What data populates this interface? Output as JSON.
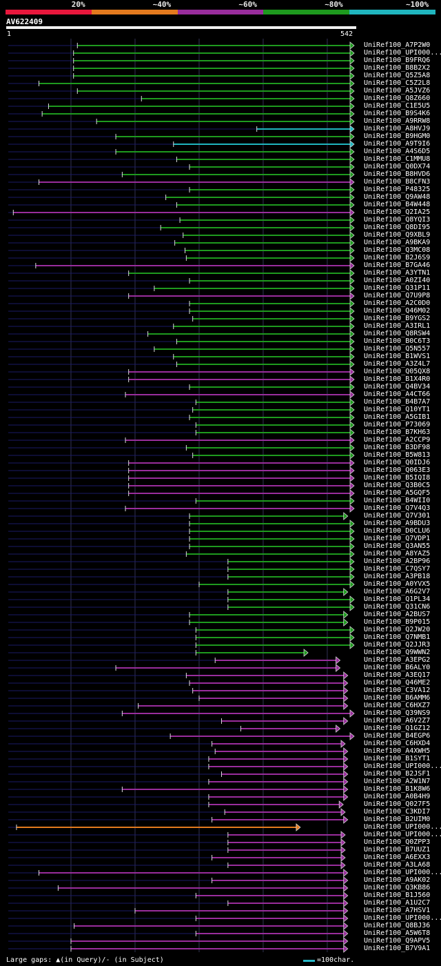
{
  "legend": [
    {
      "label": "20%",
      "color": "#e8173c"
    },
    {
      "label": "~40%",
      "color": "#e37a1e"
    },
    {
      "label": "~60%",
      "color": "#992d9c"
    },
    {
      "label": "~80%",
      "color": "#1e9a1e"
    },
    {
      "label": "~100%",
      "color": "#20b6bf"
    }
  ],
  "query": {
    "name": "AV622409",
    "start": "1",
    "end": "542",
    "length": 542
  },
  "hits": [
    {
      "id": "UniRef100_A7P2W0",
      "s": 110,
      "e": 542,
      "c": "g"
    },
    {
      "id": "UniRef100_UPI000...",
      "s": 104,
      "e": 542,
      "c": "g"
    },
    {
      "id": "UniRef100_B9FRQ6",
      "s": 104,
      "e": 542,
      "c": "g"
    },
    {
      "id": "UniRef100_B8B2X2",
      "s": 104,
      "e": 542,
      "c": "g"
    },
    {
      "id": "UniRef100_Q5Z5A8",
      "s": 104,
      "e": 542,
      "c": "g"
    },
    {
      "id": "UniRef100_C5Z2L8",
      "s": 50,
      "e": 542,
      "c": "g",
      "g": [
        [
          90,
          115
        ],
        [
          145,
          170
        ]
      ]
    },
    {
      "id": "UniRef100_A5JVZ6",
      "s": 110,
      "e": 542,
      "c": "g"
    },
    {
      "id": "UniRef100_Q8Z660",
      "s": 210,
      "e": 542,
      "c": "g"
    },
    {
      "id": "UniRef100_C1E5U5",
      "s": 65,
      "e": 542,
      "c": "g"
    },
    {
      "id": "UniRef100_B9S4K6",
      "s": 55,
      "e": 542,
      "c": "g"
    },
    {
      "id": "UniRef100_A9RRW8",
      "s": 140,
      "e": 542,
      "c": "g"
    },
    {
      "id": "UniRef100_A8HVJ9",
      "s": 390,
      "e": 542,
      "c": "c"
    },
    {
      "id": "UniRef100_B9HGM0",
      "s": 170,
      "e": 542,
      "c": "g"
    },
    {
      "id": "UniRef100_A9T9I6",
      "s": 260,
      "e": 542,
      "c": "c"
    },
    {
      "id": "UniRef100_A4S6D5",
      "s": 170,
      "e": 542,
      "c": "g"
    },
    {
      "id": "UniRef100_C1MMU8",
      "s": 265,
      "e": 542,
      "c": "g"
    },
    {
      "id": "UniRef100_Q0DX74",
      "s": 285,
      "e": 542,
      "c": "g"
    },
    {
      "id": "UniRef100_B8HVD6",
      "s": 180,
      "e": 542,
      "c": "g"
    },
    {
      "id": "UniRef100_B8CFN3",
      "s": 50,
      "e": 542,
      "c": "m"
    },
    {
      "id": "UniRef100_P48325",
      "s": 285,
      "e": 542,
      "c": "g"
    },
    {
      "id": "UniRef100_Q9AW48",
      "s": 248,
      "e": 542,
      "c": "g"
    },
    {
      "id": "UniRef100_B4W448",
      "s": 265,
      "e": 542,
      "c": "g"
    },
    {
      "id": "UniRef100_Q2IA25",
      "s": 10,
      "e": 542,
      "c": "m"
    },
    {
      "id": "UniRef100_Q8YQI3",
      "s": 270,
      "e": 542,
      "c": "g"
    },
    {
      "id": "UniRef100_Q8DI95",
      "s": 240,
      "e": 542,
      "c": "g"
    },
    {
      "id": "UniRef100_Q9XBL9",
      "s": 275,
      "e": 542,
      "c": "g"
    },
    {
      "id": "UniRef100_A9BKA9",
      "s": 262,
      "e": 542,
      "c": "g"
    },
    {
      "id": "UniRef100_Q3MC08",
      "s": 278,
      "e": 542,
      "c": "g"
    },
    {
      "id": "UniRef100_B2J6S9",
      "s": 280,
      "e": 542,
      "c": "g"
    },
    {
      "id": "UniRef100_B7GA46",
      "s": 45,
      "e": 542,
      "c": "m"
    },
    {
      "id": "UniRef100_A3YTN1",
      "s": 190,
      "e": 542,
      "c": "g"
    },
    {
      "id": "UniRef100_A0ZI40",
      "s": 285,
      "e": 542,
      "c": "g"
    },
    {
      "id": "UniRef100_Q31P11",
      "s": 230,
      "e": 542,
      "c": "g"
    },
    {
      "id": "UniRef100_Q7U9P8",
      "s": 190,
      "e": 542,
      "c": "m"
    },
    {
      "id": "UniRef100_A2C0D0",
      "s": 285,
      "e": 542,
      "c": "g"
    },
    {
      "id": "UniRef100_Q46M02",
      "s": 285,
      "e": 542,
      "c": "g"
    },
    {
      "id": "UniRef100_B9YGS2",
      "s": 290,
      "e": 542,
      "c": "g"
    },
    {
      "id": "UniRef100_A3IRL1",
      "s": 260,
      "e": 542,
      "c": "g"
    },
    {
      "id": "UniRef100_Q8RSW4",
      "s": 220,
      "e": 542,
      "c": "g"
    },
    {
      "id": "UniRef100_B0C6T3",
      "s": 265,
      "e": 542,
      "c": "g"
    },
    {
      "id": "UniRef100_Q5N557",
      "s": 230,
      "e": 542,
      "c": "g"
    },
    {
      "id": "UniRef100_B1WVS1",
      "s": 260,
      "e": 542,
      "c": "g"
    },
    {
      "id": "UniRef100_A3Z4L7",
      "s": 265,
      "e": 542,
      "c": "g"
    },
    {
      "id": "UniRef100_Q05QX8",
      "s": 190,
      "e": 542,
      "c": "m"
    },
    {
      "id": "UniRef100_B1X4R0",
      "s": 190,
      "e": 542,
      "c": "m"
    },
    {
      "id": "UniRef100_Q4BV34",
      "s": 285,
      "e": 542,
      "c": "g"
    },
    {
      "id": "UniRef100_A4CT66",
      "s": 185,
      "e": 542,
      "c": "m"
    },
    {
      "id": "UniRef100_B4B7A7",
      "s": 295,
      "e": 542,
      "c": "g"
    },
    {
      "id": "UniRef100_Q10YT1",
      "s": 290,
      "e": 542,
      "c": "g"
    },
    {
      "id": "UniRef100_A5GIB1",
      "s": 285,
      "e": 542,
      "c": "g"
    },
    {
      "id": "UniRef100_P73069",
      "s": 295,
      "e": 542,
      "c": "g"
    },
    {
      "id": "UniRef100_B7KH63",
      "s": 295,
      "e": 542,
      "c": "g"
    },
    {
      "id": "UniRef100_A2CCP9",
      "s": 185,
      "e": 542,
      "c": "m"
    },
    {
      "id": "UniRef100_B3DF98",
      "s": 280,
      "e": 542,
      "c": "g"
    },
    {
      "id": "UniRef100_B5W813",
      "s": 290,
      "e": 542,
      "c": "g"
    },
    {
      "id": "UniRef100_Q0IDJ6",
      "s": 190,
      "e": 542,
      "c": "m"
    },
    {
      "id": "UniRef100_Q063E3",
      "s": 190,
      "e": 542,
      "c": "m"
    },
    {
      "id": "UniRef100_B5IQI8",
      "s": 190,
      "e": 542,
      "c": "m"
    },
    {
      "id": "UniRef100_Q3B0C5",
      "s": 190,
      "e": 542,
      "c": "m"
    },
    {
      "id": "UniRef100_A5GQF5",
      "s": 190,
      "e": 542,
      "c": "m"
    },
    {
      "id": "UniRef100_B4WII0",
      "s": 295,
      "e": 542,
      "c": "g"
    },
    {
      "id": "UniRef100_Q7V4Q3",
      "s": 185,
      "e": 542,
      "c": "m"
    },
    {
      "id": "UniRef100_Q7V301",
      "s": 285,
      "e": 532,
      "c": "g"
    },
    {
      "id": "UniRef100_A9BDU3",
      "s": 285,
      "e": 542,
      "c": "g"
    },
    {
      "id": "UniRef100_D0CLU6",
      "s": 285,
      "e": 542,
      "c": "g"
    },
    {
      "id": "UniRef100_Q7VDP1",
      "s": 285,
      "e": 542,
      "c": "g"
    },
    {
      "id": "UniRef100_Q3AN55",
      "s": 285,
      "e": 542,
      "c": "g"
    },
    {
      "id": "UniRef100_A8YAZ5",
      "s": 280,
      "e": 542,
      "c": "g"
    },
    {
      "id": "UniRef100_A2BP96",
      "s": 345,
      "e": 542,
      "c": "g"
    },
    {
      "id": "UniRef100_C7QSY7",
      "s": 345,
      "e": 542,
      "c": "g"
    },
    {
      "id": "UniRef100_A3PB18",
      "s": 345,
      "e": 542,
      "c": "g"
    },
    {
      "id": "UniRef100_A0YVX5",
      "s": 300,
      "e": 542,
      "c": "g"
    },
    {
      "id": "UniRef100_A6G2V7",
      "s": 345,
      "e": 532,
      "c": "g"
    },
    {
      "id": "UniRef100_Q1PL34",
      "s": 345,
      "e": 542,
      "c": "g"
    },
    {
      "id": "UniRef100_Q31CN6",
      "s": 345,
      "e": 542,
      "c": "g"
    },
    {
      "id": "UniRef100_A2BUS7",
      "s": 285,
      "e": 532,
      "c": "g"
    },
    {
      "id": "UniRef100_B9P015",
      "s": 285,
      "e": 532,
      "c": "g"
    },
    {
      "id": "UniRef100_Q2JW20",
      "s": 295,
      "e": 542,
      "c": "g"
    },
    {
      "id": "UniRef100_Q7NMB1",
      "s": 295,
      "e": 542,
      "c": "g"
    },
    {
      "id": "UniRef100_Q2JJR3",
      "s": 295,
      "e": 542,
      "c": "g"
    },
    {
      "id": "UniRef100_Q9WWN2",
      "s": 295,
      "e": 470,
      "c": "g"
    },
    {
      "id": "UniRef100_A3EPG2",
      "s": 325,
      "e": 520,
      "c": "m"
    },
    {
      "id": "UniRef100_B6ALY0",
      "s": 170,
      "e": 520,
      "c": "m"
    },
    {
      "id": "UniRef100_A3EQ17",
      "s": 280,
      "e": 532,
      "c": "m"
    },
    {
      "id": "UniRef100_Q46ME2",
      "s": 285,
      "e": 532,
      "c": "m"
    },
    {
      "id": "UniRef100_C3VA12",
      "s": 290,
      "e": 532,
      "c": "m"
    },
    {
      "id": "UniRef100_B6AMM6",
      "s": 300,
      "e": 532,
      "c": "m"
    },
    {
      "id": "UniRef100_C6HXZ7",
      "s": 205,
      "e": 532,
      "c": "m"
    },
    {
      "id": "UniRef100_Q39NS9",
      "s": 180,
      "e": 542,
      "c": "m"
    },
    {
      "id": "UniRef100_A6V2Z7",
      "s": 335,
      "e": 532,
      "c": "m"
    },
    {
      "id": "UniRef100_Q1GZ12",
      "s": 365,
      "e": 520,
      "c": "m"
    },
    {
      "id": "UniRef100_B4EGP6",
      "s": 255,
      "e": 542,
      "c": "m"
    },
    {
      "id": "UniRef100_C6HXD4",
      "s": 320,
      "e": 528,
      "c": "m"
    },
    {
      "id": "UniRef100_A4XWH5",
      "s": 325,
      "e": 532,
      "c": "m"
    },
    {
      "id": "UniRef100_B1SYT1",
      "s": 315,
      "e": 532,
      "c": "m"
    },
    {
      "id": "UniRef100_UPI000...",
      "s": 315,
      "e": 532,
      "c": "m"
    },
    {
      "id": "UniRef100_B2JSF1",
      "s": 335,
      "e": 532,
      "c": "m"
    },
    {
      "id": "UniRef100_A2W1N7",
      "s": 315,
      "e": 532,
      "c": "m"
    },
    {
      "id": "UniRef100_B1K8W6",
      "s": 180,
      "e": 532,
      "c": "m"
    },
    {
      "id": "UniRef100_A0B4H9",
      "s": 315,
      "e": 532,
      "c": "m"
    },
    {
      "id": "UniRef100_Q027F5",
      "s": 315,
      "e": 525,
      "c": "m"
    },
    {
      "id": "UniRef100_C3KDI7",
      "s": 340,
      "e": 528,
      "c": "m"
    },
    {
      "id": "UniRef100_B2UIM0",
      "s": 320,
      "e": 532,
      "c": "m"
    },
    {
      "id": "UniRef100_UPI000...",
      "s": 15,
      "e": 458,
      "c": "o"
    },
    {
      "id": "UniRef100_UPI000...",
      "s": 345,
      "e": 528,
      "c": "m"
    },
    {
      "id": "UniRef100_Q0ZPP3",
      "s": 345,
      "e": 528,
      "c": "m"
    },
    {
      "id": "UniRef100_B7UUZ1",
      "s": 345,
      "e": 528,
      "c": "m"
    },
    {
      "id": "UniRef100_A6EXX3",
      "s": 320,
      "e": 528,
      "c": "m"
    },
    {
      "id": "UniRef100_A3LA68",
      "s": 345,
      "e": 528,
      "c": "m"
    },
    {
      "id": "UniRef100_UPI000...",
      "s": 50,
      "e": 532,
      "c": "m"
    },
    {
      "id": "UniRef100_A9AK02",
      "s": 320,
      "e": 532,
      "c": "m"
    },
    {
      "id": "UniRef100_Q3KB86",
      "s": 80,
      "e": 532,
      "c": "m"
    },
    {
      "id": "UniRef100_B1J560",
      "s": 295,
      "e": 532,
      "c": "m"
    },
    {
      "id": "UniRef100_A1U2C7",
      "s": 345,
      "e": 532,
      "c": "m"
    },
    {
      "id": "UniRef100_A7HSV1",
      "s": 200,
      "e": 532,
      "c": "m"
    },
    {
      "id": "UniRef100_UPI000...",
      "s": 295,
      "e": 532,
      "c": "m"
    },
    {
      "id": "UniRef100_Q8BJ36",
      "s": 105,
      "e": 532,
      "c": "m"
    },
    {
      "id": "UniRef100_A5W6T8",
      "s": 295,
      "e": 532,
      "c": "m"
    },
    {
      "id": "UniRef100_Q9APV5",
      "s": 100,
      "e": 532,
      "c": "m"
    },
    {
      "id": "UniRef100_B7V9A1",
      "s": 100,
      "e": 532,
      "c": "m"
    }
  ],
  "colors": {
    "g": "#1e9a1e",
    "m": "#992d9c",
    "c": "#20b6bf",
    "o": "#e37a1e",
    "dark": "#1a1a66",
    "grid": "#333355"
  },
  "footer": {
    "gaps_label": "Large gaps: ▲(in Query)/- (in Subject)",
    "scale_label": "=100char."
  }
}
